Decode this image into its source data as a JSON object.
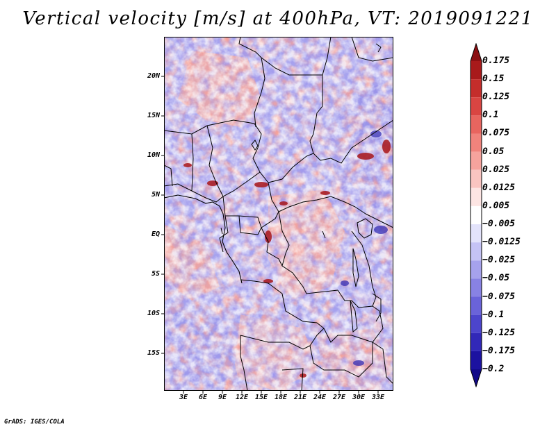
{
  "title": "Vertical velocity [m/s] at 400hPa, VT: 2019091221",
  "map": {
    "lat_labels": [
      "20N",
      "15N",
      "10N",
      "5N",
      "EQ",
      "5S",
      "10S",
      "15S"
    ],
    "lon_labels": [
      "3E",
      "6E",
      "9E",
      "12E",
      "15E",
      "18E",
      "21E",
      "24E",
      "27E",
      "30E",
      "33E"
    ],
    "colors": {
      "land_border": "#000000",
      "positive": "#e8554f",
      "negative": "#5a52d6",
      "neutral": "#ffffff"
    }
  },
  "colorbar": {
    "levels": [
      "0.175",
      "0.15",
      "0.125",
      "0.1",
      "0.075",
      "0.05",
      "0.025",
      "0.0125",
      "0.005",
      "−0.005",
      "−0.0125",
      "−0.025",
      "−0.05",
      "−0.075",
      "−0.1",
      "−0.125",
      "−0.175",
      "−0.2"
    ],
    "colors": [
      "#8b0f12",
      "#a81a1b",
      "#c42d2b",
      "#d94542",
      "#e8655f",
      "#f0837c",
      "#f6a39d",
      "#fac5c1",
      "#fde5e3",
      "#ffffff",
      "#e3e3fb",
      "#c5c3f5",
      "#a6a2ec",
      "#8882e3",
      "#6a63d9",
      "#4c45cc",
      "#3128b8",
      "#1c12a0",
      "#120a88"
    ]
  },
  "credit": "GrADS: IGES/COLA"
}
